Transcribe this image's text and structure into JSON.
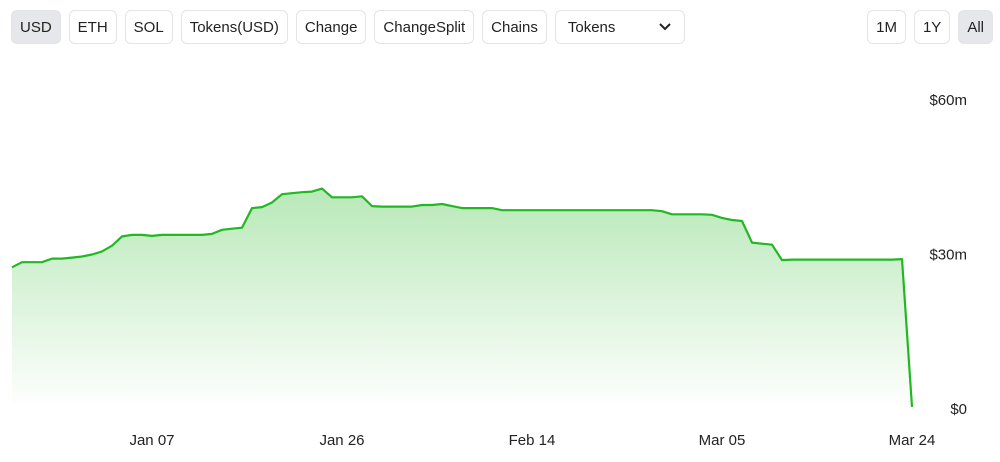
{
  "toolbar": {
    "buttons": [
      "USD",
      "ETH",
      "SOL",
      "Tokens(USD)",
      "Change",
      "ChangeSplit",
      "Chains"
    ],
    "dropdown": "Tokens",
    "range_buttons": [
      "1M",
      "1Y",
      "All"
    ]
  },
  "chart_data": {
    "type": "area",
    "color": "#22b822",
    "x": [
      "Dec 24",
      "Dec 25",
      "Dec 26",
      "Dec 27",
      "Dec 28",
      "Dec 29",
      "Dec 30",
      "Dec 31",
      "Jan 01",
      "Jan 02",
      "Jan 03",
      "Jan 04",
      "Jan 05",
      "Jan 06",
      "Jan 07",
      "Jan 08",
      "Jan 09",
      "Jan 10",
      "Jan 11",
      "Jan 12",
      "Jan 13",
      "Jan 14",
      "Jan 15",
      "Jan 16",
      "Jan 17",
      "Jan 18",
      "Jan 19",
      "Jan 20",
      "Jan 21",
      "Jan 22",
      "Jan 23",
      "Jan 24",
      "Jan 25",
      "Jan 26",
      "Jan 27",
      "Jan 28",
      "Jan 29",
      "Jan 30",
      "Jan 31",
      "Feb 01",
      "Feb 02",
      "Feb 03",
      "Feb 04",
      "Feb 05",
      "Feb 06",
      "Feb 07",
      "Feb 08",
      "Feb 09",
      "Feb 10",
      "Feb 11",
      "Feb 12",
      "Feb 13",
      "Feb 14",
      "Feb 15",
      "Feb 16",
      "Feb 17",
      "Feb 18",
      "Feb 19",
      "Feb 20",
      "Feb 21",
      "Feb 22",
      "Feb 23",
      "Feb 24",
      "Feb 25",
      "Feb 26",
      "Feb 27",
      "Feb 28",
      "Mar 01",
      "Mar 02",
      "Mar 03",
      "Mar 04",
      "Mar 05",
      "Mar 06",
      "Mar 07",
      "Mar 08",
      "Mar 09",
      "Mar 10",
      "Mar 11",
      "Mar 12",
      "Mar 13",
      "Mar 14",
      "Mar 15",
      "Mar 16",
      "Mar 17",
      "Mar 18",
      "Mar 19",
      "Mar 20",
      "Mar 21",
      "Mar 22",
      "Mar 23",
      "Mar 24"
    ],
    "values": [
      27.7,
      28.7,
      28.7,
      28.7,
      29.4,
      29.4,
      29.6,
      29.8,
      30.2,
      30.8,
      31.9,
      33.7,
      34.0,
      34.0,
      33.8,
      34.0,
      34.0,
      34.0,
      34.0,
      34.0,
      34.2,
      35.0,
      35.2,
      35.4,
      39.2,
      39.4,
      40.3,
      41.9,
      42.1,
      42.3,
      42.4,
      43.0,
      41.3,
      41.3,
      41.3,
      41.5,
      39.6,
      39.5,
      39.5,
      39.5,
      39.5,
      39.8,
      39.8,
      40.0,
      39.6,
      39.2,
      39.2,
      39.2,
      39.2,
      38.8,
      38.8,
      38.8,
      38.8,
      38.8,
      38.8,
      38.8,
      38.8,
      38.8,
      38.8,
      38.8,
      38.8,
      38.8,
      38.8,
      38.8,
      38.8,
      38.6,
      38.0,
      38.0,
      38.0,
      38.0,
      37.9,
      37.3,
      36.9,
      36.7,
      32.5,
      32.3,
      32.1,
      29.1,
      29.2,
      29.2,
      29.2,
      29.2,
      29.2,
      29.2,
      29.2,
      29.2,
      29.2,
      29.2,
      29.2,
      29.3,
      0.6
    ],
    "ylim": [
      0,
      60
    ],
    "yticks": [
      {
        "value": 0,
        "label": "$0"
      },
      {
        "value": 30,
        "label": "$30m"
      },
      {
        "value": 60,
        "label": "$60m"
      }
    ],
    "xticks": [
      "Jan 07",
      "Jan 26",
      "Feb 14",
      "Mar 05",
      "Mar 24"
    ]
  }
}
